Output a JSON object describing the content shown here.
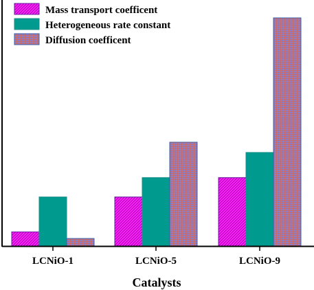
{
  "chart_data": {
    "type": "bar",
    "title": "",
    "xlabel": "Catalysts",
    "ylabel": "",
    "categories": [
      "LCNiO-1",
      "LCNiO-5",
      "LCNiO-9"
    ],
    "ylim": [
      0,
      100
    ],
    "y_ticks_visible": false,
    "grid": false,
    "legend_position": "top-left",
    "series": [
      {
        "name": "Mass transport coefficent",
        "values": [
          6.2,
          21.5,
          30.0
        ],
        "color": "#ff22ff",
        "pattern": "diagonal-hatch"
      },
      {
        "name": "Heterogeneous rate constant",
        "values": [
          21.5,
          30.0,
          41.0
        ],
        "color": "#009a8f",
        "pattern": "solid"
      },
      {
        "name": "Diffusion coefficent",
        "values": [
          3.3,
          45.5,
          100.0
        ],
        "color": "#a07080",
        "pattern": "fine-grid"
      }
    ]
  }
}
